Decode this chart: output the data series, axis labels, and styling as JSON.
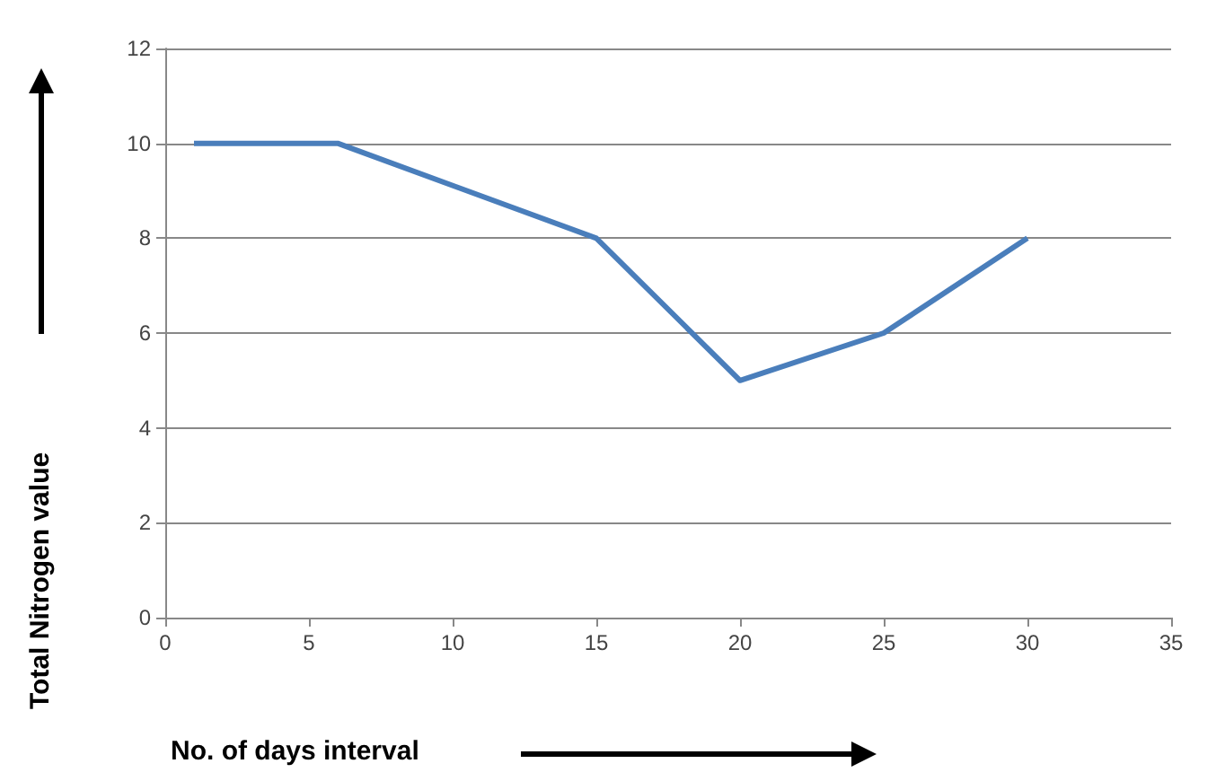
{
  "chart_data": {
    "type": "line",
    "xlabel": "No. of days interval",
    "ylabel": "Total Nitrogen value",
    "x": [
      1,
      6,
      15,
      20,
      25,
      30
    ],
    "series": [
      {
        "color": "#4a7ebb",
        "values": [
          10,
          10,
          8,
          5,
          6,
          8
        ]
      }
    ],
    "xlim": [
      0,
      35
    ],
    "xticks": [
      0,
      5,
      10,
      15,
      20,
      25,
      30,
      35
    ],
    "ylim": [
      0,
      12
    ],
    "yticks": [
      0,
      2,
      4,
      6,
      8,
      10,
      12
    ],
    "grid": "y",
    "marker": "none",
    "line_style": "solid"
  }
}
